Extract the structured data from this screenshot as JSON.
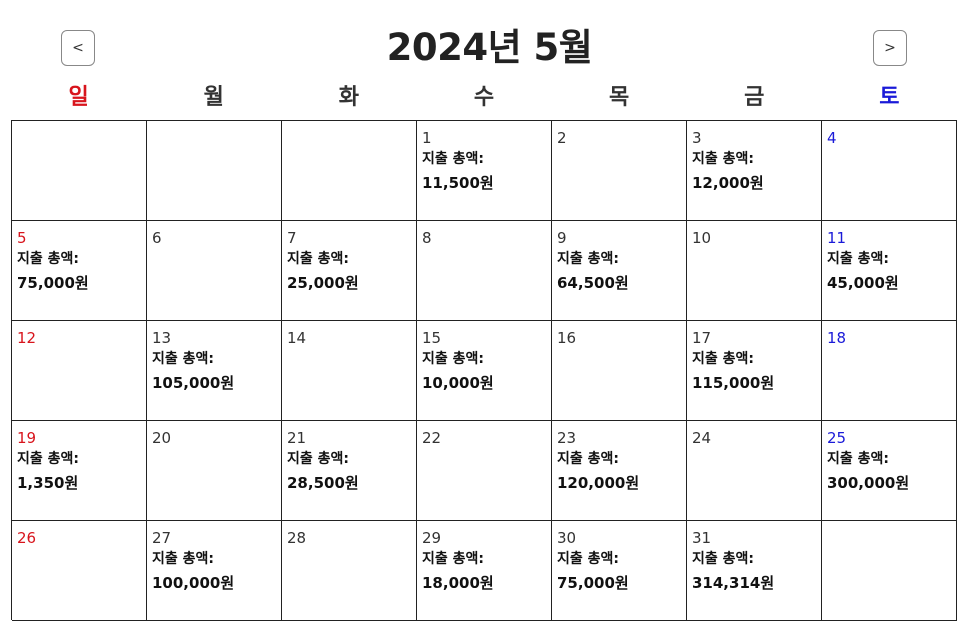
{
  "header": {
    "title": "2024년 5월",
    "prev_label": "<",
    "next_label": ">"
  },
  "weekdays": [
    "일",
    "월",
    "화",
    "수",
    "목",
    "금",
    "토"
  ],
  "colors": {
    "sunday": "#d8141c",
    "saturday": "#1a1ad8",
    "text": "#222222",
    "grid_line": "#222222"
  },
  "expense_label": "지출 총액:",
  "cells": [
    {
      "day": "",
      "label": "",
      "amount": ""
    },
    {
      "day": "",
      "label": "",
      "amount": ""
    },
    {
      "day": "",
      "label": "",
      "amount": ""
    },
    {
      "day": "1",
      "label": "지출 총액:",
      "amount": "11,500원"
    },
    {
      "day": "2",
      "label": "",
      "amount": ""
    },
    {
      "day": "3",
      "label": "지출 총액:",
      "amount": "12,000원"
    },
    {
      "day": "4",
      "label": "",
      "amount": ""
    },
    {
      "day": "5",
      "label": "지출 총액:",
      "amount": "75,000원"
    },
    {
      "day": "6",
      "label": "",
      "amount": ""
    },
    {
      "day": "7",
      "label": "지출 총액:",
      "amount": "25,000원"
    },
    {
      "day": "8",
      "label": "",
      "amount": ""
    },
    {
      "day": "9",
      "label": "지출 총액:",
      "amount": "64,500원"
    },
    {
      "day": "10",
      "label": "",
      "amount": ""
    },
    {
      "day": "11",
      "label": "지출 총액:",
      "amount": "45,000원"
    },
    {
      "day": "12",
      "label": "",
      "amount": ""
    },
    {
      "day": "13",
      "label": "지출 총액:",
      "amount": "105,000원"
    },
    {
      "day": "14",
      "label": "",
      "amount": ""
    },
    {
      "day": "15",
      "label": "지출 총액:",
      "amount": "10,000원"
    },
    {
      "day": "16",
      "label": "",
      "amount": ""
    },
    {
      "day": "17",
      "label": "지출 총액:",
      "amount": "115,000원"
    },
    {
      "day": "18",
      "label": "",
      "amount": ""
    },
    {
      "day": "19",
      "label": "지출 총액:",
      "amount": "1,350원"
    },
    {
      "day": "20",
      "label": "",
      "amount": ""
    },
    {
      "day": "21",
      "label": "지출 총액:",
      "amount": "28,500원"
    },
    {
      "day": "22",
      "label": "",
      "amount": ""
    },
    {
      "day": "23",
      "label": "지출 총액:",
      "amount": "120,000원"
    },
    {
      "day": "24",
      "label": "",
      "amount": ""
    },
    {
      "day": "25",
      "label": "지출 총액:",
      "amount": "300,000원"
    },
    {
      "day": "26",
      "label": "",
      "amount": ""
    },
    {
      "day": "27",
      "label": "지출 총액:",
      "amount": "100,000원"
    },
    {
      "day": "28",
      "label": "",
      "amount": ""
    },
    {
      "day": "29",
      "label": "지출 총액:",
      "amount": "18,000원"
    },
    {
      "day": "30",
      "label": "지출 총액:",
      "amount": "75,000원"
    },
    {
      "day": "31",
      "label": "지출 총액:",
      "amount": "314,314원"
    },
    {
      "day": "",
      "label": "",
      "amount": ""
    }
  ]
}
